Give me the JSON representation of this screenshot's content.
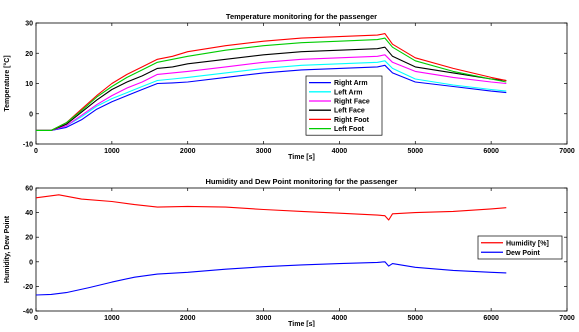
{
  "chart_data": [
    {
      "type": "line",
      "title": "Temperature monitoring for the passenger",
      "xlabel": "Time [s]",
      "ylabel": "Temperature [°C]",
      "xlim": [
        0,
        7000
      ],
      "ylim": [
        -10,
        30
      ],
      "xticks": [
        0,
        1000,
        2000,
        3000,
        4000,
        5000,
        6000,
        7000
      ],
      "yticks": [
        -10,
        0,
        10,
        20,
        30
      ],
      "legend_position": "bottom-center",
      "series": [
        {
          "name": "Right Arm",
          "color": "#0000ff",
          "x": [
            0,
            200,
            400,
            600,
            800,
            1000,
            1200,
            1400,
            1600,
            1800,
            2000,
            2500,
            3000,
            3500,
            4000,
            4500,
            4600,
            4700,
            5000,
            5500,
            6000,
            6200
          ],
          "y": [
            -5.5,
            -5.5,
            -4.5,
            -2,
            1.5,
            4,
            6,
            8,
            10,
            10.2,
            10.5,
            12,
            13.5,
            14.5,
            15,
            15.5,
            16,
            13.5,
            10.5,
            9,
            7.5,
            7
          ]
        },
        {
          "name": "Left Arm",
          "color": "#00ffff",
          "x": [
            0,
            200,
            400,
            600,
            800,
            1000,
            1200,
            1400,
            1600,
            1800,
            2000,
            2500,
            3000,
            3500,
            4000,
            4500,
            4600,
            4700,
            5000,
            5500,
            6000,
            6200
          ],
          "y": [
            -5.5,
            -5.5,
            -4,
            -1,
            2.5,
            5,
            7,
            9,
            11,
            11.5,
            12,
            13.5,
            15,
            16,
            16.5,
            17,
            17.5,
            15,
            11.5,
            9.5,
            8,
            7.5
          ]
        },
        {
          "name": "Right Face",
          "color": "#ff00ff",
          "x": [
            0,
            200,
            400,
            600,
            800,
            1000,
            1200,
            1400,
            1600,
            1800,
            2000,
            2500,
            3000,
            3500,
            4000,
            4500,
            4600,
            4700,
            5000,
            5500,
            6000,
            6200
          ],
          "y": [
            -5.5,
            -5.5,
            -4,
            -0.5,
            3,
            6,
            8.5,
            10.5,
            13,
            13.5,
            14,
            15.5,
            17,
            18,
            18.5,
            19,
            19.5,
            17,
            14,
            12,
            10.5,
            10
          ]
        },
        {
          "name": "Left Face",
          "color": "#000000",
          "x": [
            0,
            200,
            400,
            600,
            800,
            1000,
            1200,
            1400,
            1600,
            1800,
            2000,
            2500,
            3000,
            3500,
            4000,
            4500,
            4600,
            4700,
            5000,
            5500,
            6000,
            6200
          ],
          "y": [
            -5.5,
            -5.5,
            -3.5,
            0.5,
            4.5,
            8,
            10.5,
            12.5,
            15,
            15.5,
            16.5,
            18,
            19.5,
            20.5,
            21,
            21.5,
            22,
            19,
            15.5,
            13.5,
            11.5,
            11
          ]
        },
        {
          "name": "Right Foot",
          "color": "#ff0000",
          "x": [
            0,
            200,
            400,
            600,
            800,
            1000,
            1200,
            1400,
            1600,
            1800,
            2000,
            2500,
            3000,
            3500,
            4000,
            4500,
            4600,
            4700,
            5000,
            5500,
            6000,
            6200
          ],
          "y": [
            -5.5,
            -5.5,
            -3,
            1.5,
            6,
            10,
            13,
            15.5,
            18,
            19,
            20.5,
            22.5,
            24,
            25,
            25.5,
            26,
            26.5,
            23,
            18.5,
            15,
            12,
            11
          ]
        },
        {
          "name": "Left Foot",
          "color": "#00cc00",
          "x": [
            0,
            200,
            400,
            600,
            800,
            1000,
            1200,
            1400,
            1600,
            1800,
            2000,
            2500,
            3000,
            3500,
            4000,
            4500,
            4600,
            4700,
            5000,
            5500,
            6000,
            6200
          ],
          "y": [
            -5.5,
            -5.5,
            -3,
            1,
            5.5,
            9,
            12,
            14.5,
            17,
            18,
            19,
            21,
            22.5,
            23.5,
            24,
            24.5,
            25,
            22,
            17.5,
            14,
            11.5,
            10.5
          ]
        }
      ]
    },
    {
      "type": "line",
      "title": "Humidity and Dew Point monitoring for the passenger",
      "xlabel": "Time [s]",
      "ylabel": "Humidity, Dew Point",
      "xlim": [
        0,
        7000
      ],
      "ylim": [
        -40,
        60
      ],
      "xticks": [
        0,
        1000,
        2000,
        3000,
        4000,
        5000,
        6000,
        7000
      ],
      "yticks": [
        -40,
        -20,
        0,
        20,
        40,
        60
      ],
      "legend_position": "right",
      "series": [
        {
          "name": "Humidity [%]",
          "color": "#ff0000",
          "x": [
            0,
            300,
            600,
            1000,
            1300,
            1600,
            2000,
            2500,
            3000,
            3500,
            4000,
            4500,
            4600,
            4650,
            4700,
            5000,
            5500,
            6000,
            6200
          ],
          "y": [
            52,
            54.5,
            51,
            49,
            46.5,
            44.5,
            45,
            44.5,
            42.5,
            41,
            39.5,
            38,
            37.5,
            34,
            39,
            40,
            41,
            43,
            44
          ]
        },
        {
          "name": "Dew Point",
          "color": "#0000ff",
          "x": [
            0,
            200,
            400,
            700,
            1000,
            1300,
            1600,
            2000,
            2500,
            3000,
            3500,
            4000,
            4500,
            4600,
            4650,
            4700,
            5000,
            5500,
            6000,
            6200
          ],
          "y": [
            -27,
            -26.5,
            -25,
            -21,
            -16.5,
            -12.5,
            -10,
            -8.5,
            -6,
            -4,
            -2.5,
            -1.5,
            -0.5,
            0,
            -3.5,
            -1.5,
            -4.5,
            -7,
            -8.5,
            -9
          ]
        }
      ]
    }
  ]
}
